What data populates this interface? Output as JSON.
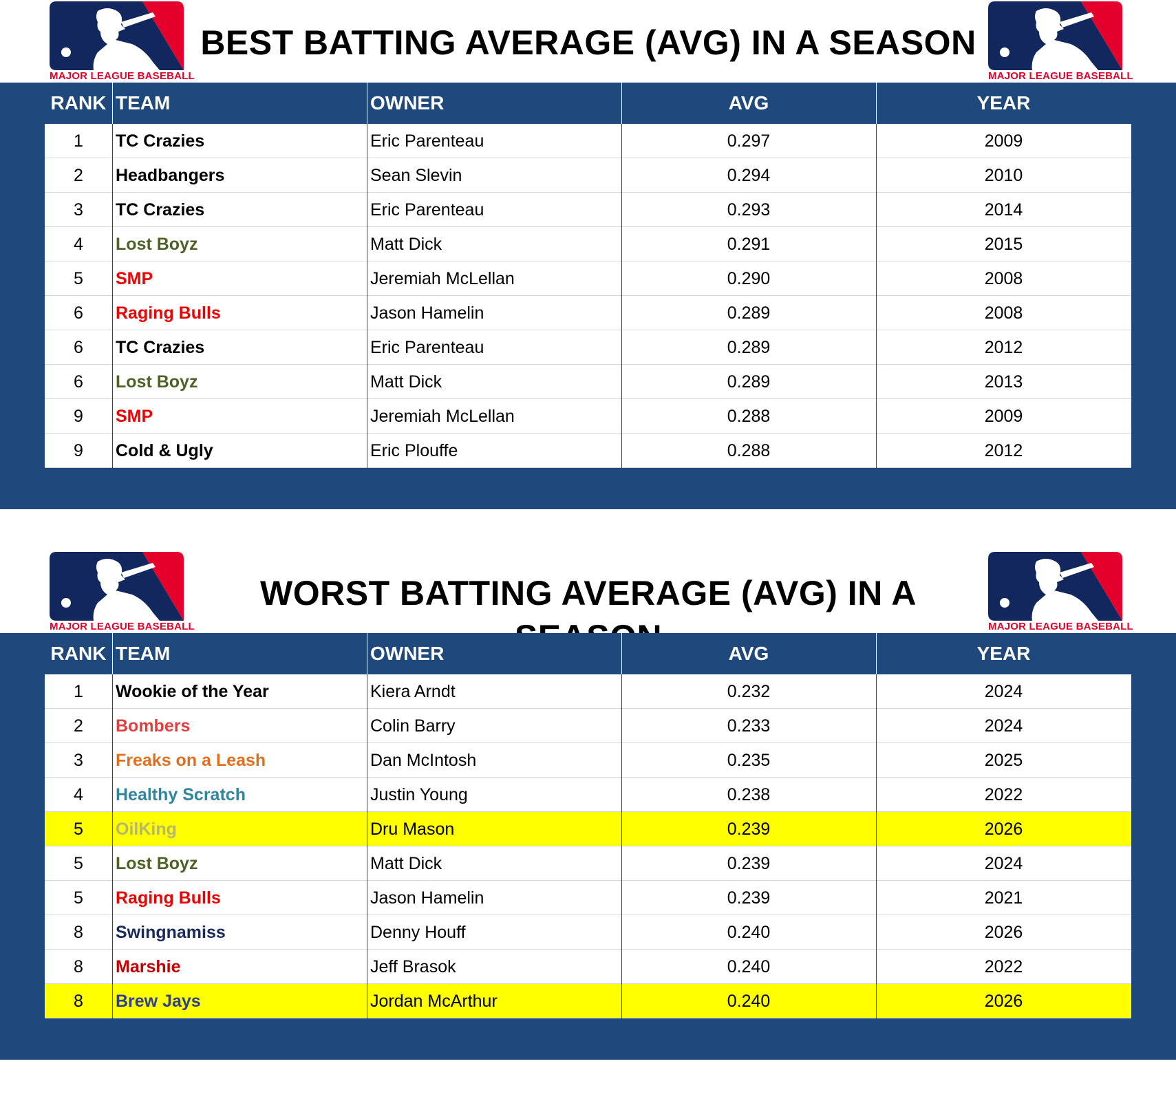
{
  "logo": {
    "brand_text": "MAJOR LEAGUE BASEBALL",
    "colors": {
      "blue": "#13275f",
      "red": "#e4002b"
    }
  },
  "columns": [
    "RANK",
    "TEAM",
    "OWNER",
    "AVG",
    "YEAR"
  ],
  "colors": {
    "panel": "#1f487c",
    "highlight": "#ffff00"
  },
  "best": {
    "title": "BEST BATTING AVERAGE (AVG) IN A SEASON",
    "rows": [
      {
        "rank": "1",
        "team": "TC Crazies",
        "team_color": "#000000",
        "owner": "Eric Parenteau",
        "avg": "0.297",
        "year": "2009",
        "highlight": false
      },
      {
        "rank": "2",
        "team": "Headbangers",
        "team_color": "#000000",
        "owner": "Sean Slevin",
        "avg": "0.294",
        "year": "2010",
        "highlight": false
      },
      {
        "rank": "3",
        "team": "TC Crazies",
        "team_color": "#000000",
        "owner": "Eric Parenteau",
        "avg": "0.293",
        "year": "2014",
        "highlight": false
      },
      {
        "rank": "4",
        "team": "Lost Boyz",
        "team_color": "#4e6228",
        "owner": "Matt Dick",
        "avg": "0.291",
        "year": "2015",
        "highlight": false
      },
      {
        "rank": "5",
        "team": "SMP",
        "team_color": "#ee0000",
        "owner": "Jeremiah McLellan",
        "avg": "0.290",
        "year": "2008",
        "highlight": false
      },
      {
        "rank": "6",
        "team": "Raging Bulls",
        "team_color": "#ee0000",
        "owner": "Jason Hamelin",
        "avg": "0.289",
        "year": "2008",
        "highlight": false
      },
      {
        "rank": "6",
        "team": "TC Crazies",
        "team_color": "#000000",
        "owner": "Eric Parenteau",
        "avg": "0.289",
        "year": "2012",
        "highlight": false
      },
      {
        "rank": "6",
        "team": "Lost Boyz",
        "team_color": "#4e6228",
        "owner": "Matt Dick",
        "avg": "0.289",
        "year": "2013",
        "highlight": false
      },
      {
        "rank": "9",
        "team": "SMP",
        "team_color": "#ee0000",
        "owner": "Jeremiah McLellan",
        "avg": "0.288",
        "year": "2009",
        "highlight": false
      },
      {
        "rank": "9",
        "team": "Cold & Ugly",
        "team_color": "#000000",
        "owner": "Eric Plouffe",
        "avg": "0.288",
        "year": "2012",
        "highlight": false
      }
    ]
  },
  "worst": {
    "title": "WORST BATTING AVERAGE (AVG) IN A SEASON",
    "rows": [
      {
        "rank": "1",
        "team": "Wookie of the Year",
        "team_color": "#000000",
        "owner": "Kiera Arndt",
        "avg": "0.232",
        "year": "2024",
        "highlight": false
      },
      {
        "rank": "2",
        "team": "Bombers",
        "team_color": "#e04040",
        "owner": "Colin Barry",
        "avg": "0.233",
        "year": "2024",
        "highlight": false
      },
      {
        "rank": "3",
        "team": "Freaks on a Leash",
        "team_color": "#e07020",
        "owner": "Dan McIntosh",
        "avg": "0.235",
        "year": "2025",
        "highlight": false
      },
      {
        "rank": "4",
        "team": "Healthy Scratch",
        "team_color": "#31859c",
        "owner": "Justin Young",
        "avg": "0.238",
        "year": "2022",
        "highlight": false
      },
      {
        "rank": "5",
        "team": "OilKing",
        "team_color": "#b4b86a",
        "owner": "Dru Mason",
        "avg": "0.239",
        "year": "2026",
        "highlight": true
      },
      {
        "rank": "5",
        "team": "Lost Boyz",
        "team_color": "#4e6228",
        "owner": "Matt Dick",
        "avg": "0.239",
        "year": "2024",
        "highlight": false
      },
      {
        "rank": "5",
        "team": "Raging Bulls",
        "team_color": "#ee0000",
        "owner": "Jason Hamelin",
        "avg": "0.239",
        "year": "2021",
        "highlight": false
      },
      {
        "rank": "8",
        "team": "Swingnamiss",
        "team_color": "#1a2a5a",
        "owner": "Denny Houff",
        "avg": "0.240",
        "year": "2026",
        "highlight": false
      },
      {
        "rank": "8",
        "team": "Marshie",
        "team_color": "#c00000",
        "owner": "Jeff Brasok",
        "avg": "0.240",
        "year": "2022",
        "highlight": false
      },
      {
        "rank": "8",
        "team": "Brew Jays",
        "team_color": "#2f3f8f",
        "owner": "Jordan McArthur",
        "avg": "0.240",
        "year": "2026",
        "highlight": true
      }
    ]
  }
}
